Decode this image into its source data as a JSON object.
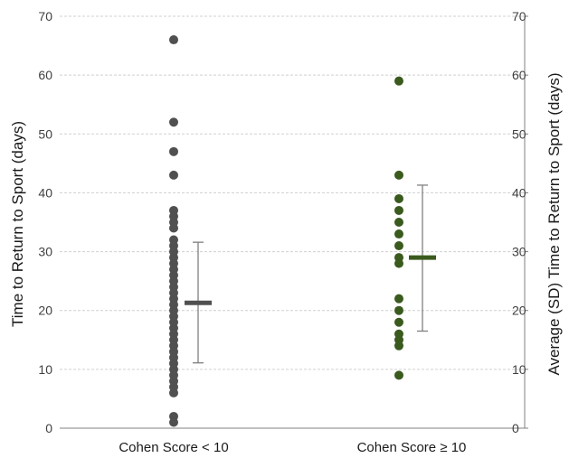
{
  "chart_data": {
    "type": "scatter",
    "subtype": "dot-plot-with-mean-sd",
    "categories": [
      "Cohen Score < 10",
      "Cohen Score ≥ 10"
    ],
    "ylabel_left": "Time to Return to Sport (days)",
    "ylabel_right": "Average (SD) Time to Return to Sport (days)",
    "ylim": [
      0,
      70
    ],
    "yticks": [
      "0",
      "10",
      "20",
      "30",
      "40",
      "50",
      "60",
      "70"
    ],
    "grid": true,
    "series": [
      {
        "category": "Cohen Score < 10",
        "color": "#505050",
        "values": [
          66,
          52,
          47,
          43,
          37,
          36,
          35,
          34,
          32,
          31,
          30,
          29,
          28,
          27,
          26,
          25,
          24,
          23,
          22,
          21,
          20,
          19,
          18,
          17,
          16,
          15,
          14,
          13,
          12,
          11,
          10,
          9,
          8,
          7,
          6,
          2,
          1
        ],
        "mean": 21.3,
        "sd_low": 11.1,
        "sd_high": 31.6
      },
      {
        "category": "Cohen Score ≥ 10",
        "color": "#3a5a1e",
        "values": [
          59,
          43,
          39,
          37,
          35,
          33,
          31,
          29,
          28,
          22,
          20,
          18,
          16,
          15,
          14,
          9
        ],
        "mean": 29,
        "sd_low": 16.5,
        "sd_high": 41.3
      }
    ]
  }
}
